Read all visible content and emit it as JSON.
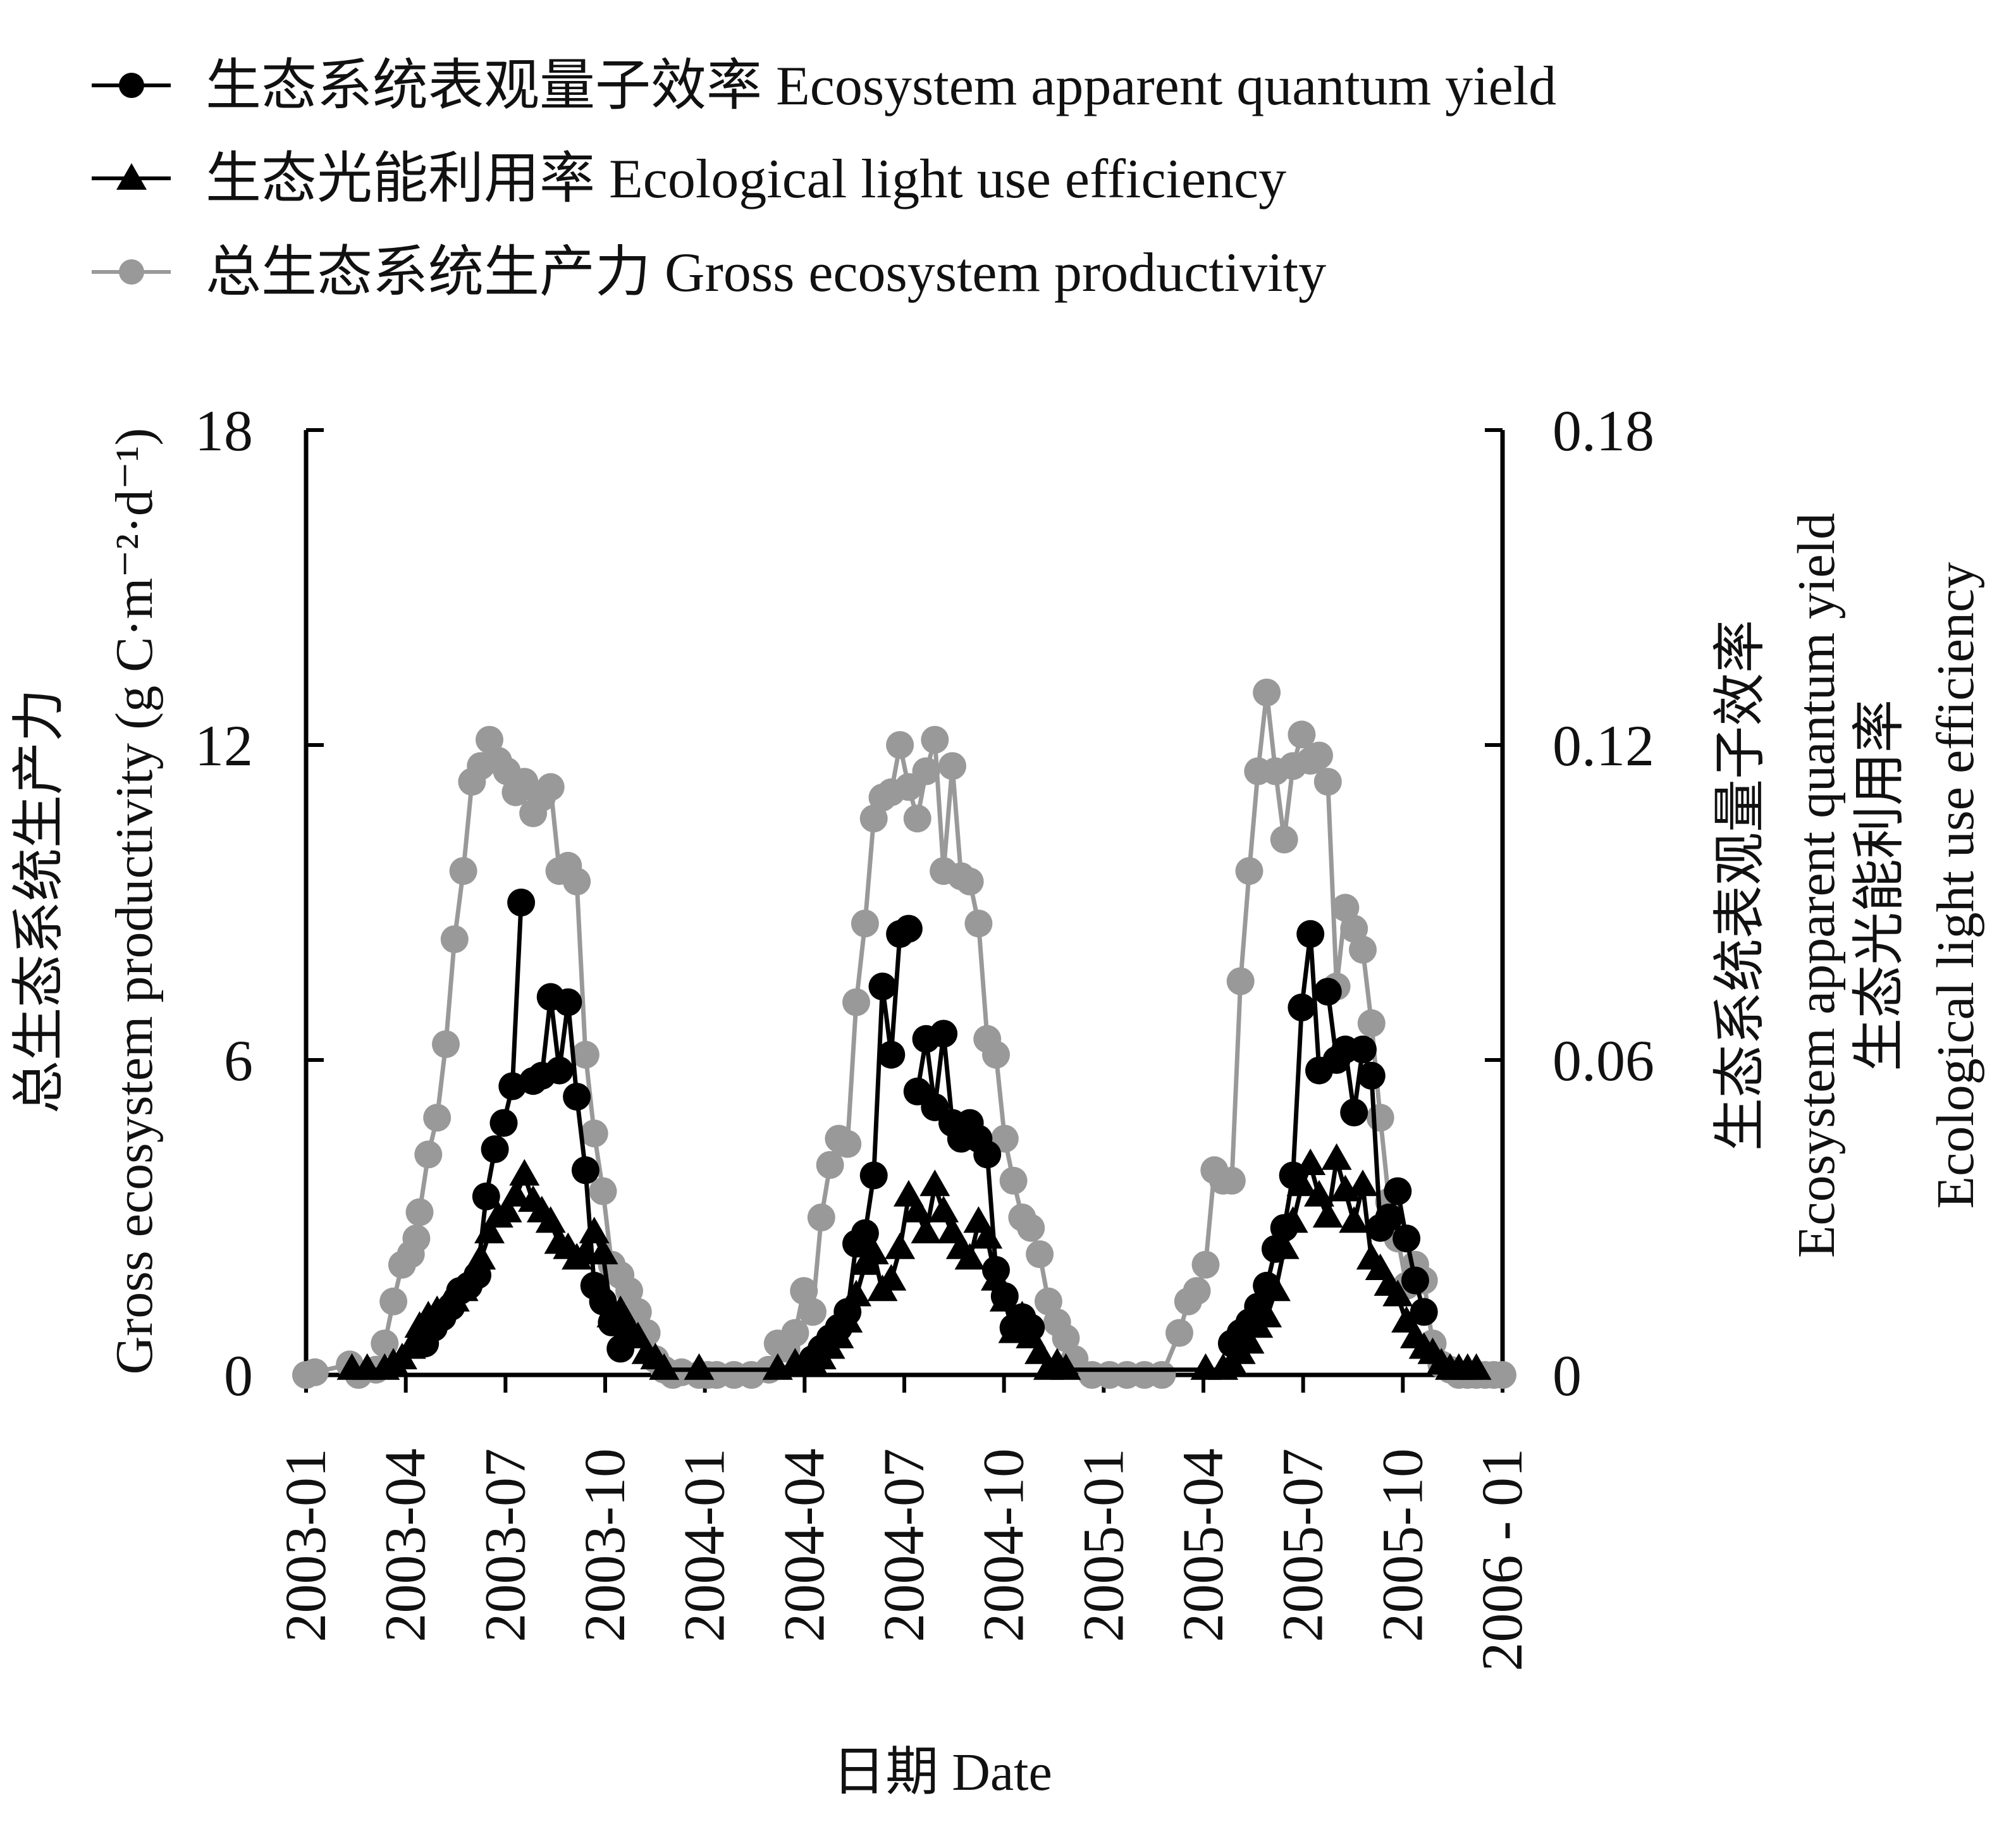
{
  "colors": {
    "quantum_yield": "#000000",
    "light_use": "#000000",
    "gep": "#999999",
    "axis": "#000000"
  },
  "legend": {
    "items": [
      {
        "key": "quantum_yield",
        "label": "生态系统表观量子效率 Ecosystem apparent quantum yield",
        "marker": "circle"
      },
      {
        "key": "light_use",
        "label": "生态光能利用率 Ecological light use efficiency",
        "marker": "triangle"
      },
      {
        "key": "gep",
        "label": "总生态系统生产力 Gross ecosystem productivity",
        "marker": "circle"
      }
    ]
  },
  "chart_data": {
    "type": "line",
    "xlabel": "日期 Date",
    "ylabel_left": [
      "总生态系统生产力",
      "Gross ecosystem productivity (g C·m⁻²·d⁻¹)"
    ],
    "ylabel_right": [
      "生态系统表观量子效率",
      "Ecosystem apparent quantum yield",
      "生态光能利用率",
      "Ecological light use efficiency"
    ],
    "x_ticks": [
      "2003-01",
      "2003-04",
      "2003-07",
      "2003-10",
      "2004-01",
      "2004-04",
      "2004-07",
      "2004-10",
      "2005-01",
      "2005-04",
      "2005-07",
      "2005-10",
      "2006 - 01"
    ],
    "xlim": [
      "2003-01-01",
      "2006-01-01"
    ],
    "ylim_left": [
      0,
      18
    ],
    "ylim_right": [
      0,
      0.18
    ],
    "y_ticks_left": [
      "0",
      "6",
      "12",
      "18"
    ],
    "y_ticks_right": [
      "0",
      "0.06",
      "0.12",
      "0.18"
    ],
    "grid": false,
    "legend_position": "top",
    "series": [
      {
        "name": "总生态系统生产力 Gross ecosystem productivity",
        "key": "gep",
        "axis": "left",
        "marker": "circle",
        "x": [
          "2003-01-01",
          "2003-01-09",
          "2003-02-10",
          "2003-02-18",
          "2003-03-06",
          "2003-03-14",
          "2003-03-22",
          "2003-03-30",
          "2003-04-07",
          "2003-04-12",
          "2003-04-15",
          "2003-04-23",
          "2003-05-01",
          "2003-05-09",
          "2003-05-17",
          "2003-05-25",
          "2003-06-02",
          "2003-06-10",
          "2003-06-18",
          "2003-06-26",
          "2003-07-04",
          "2003-07-12",
          "2003-07-20",
          "2003-07-28",
          "2003-08-05",
          "2003-08-13",
          "2003-08-21",
          "2003-08-29",
          "2003-09-06",
          "2003-09-14",
          "2003-09-22",
          "2003-09-30",
          "2003-10-08",
          "2003-10-16",
          "2003-10-24",
          "2003-11-01",
          "2003-11-09",
          "2003-11-17",
          "2003-11-25",
          "2003-12-03",
          "2003-12-11",
          "2003-12-27",
          "2004-01-04",
          "2004-01-12",
          "2004-01-28",
          "2004-02-13",
          "2004-02-29",
          "2004-03-08",
          "2004-03-16",
          "2004-03-24",
          "2004-04-01",
          "2004-04-09",
          "2004-04-17",
          "2004-04-25",
          "2004-05-03",
          "2004-05-11",
          "2004-05-19",
          "2004-05-27",
          "2004-06-04",
          "2004-06-12",
          "2004-06-20",
          "2004-06-28",
          "2004-07-06",
          "2004-07-14",
          "2004-07-22",
          "2004-07-30",
          "2004-08-07",
          "2004-08-15",
          "2004-08-23",
          "2004-08-31",
          "2004-09-08",
          "2004-09-16",
          "2004-09-24",
          "2004-10-02",
          "2004-10-10",
          "2004-10-18",
          "2004-10-26",
          "2004-11-03",
          "2004-11-11",
          "2004-11-19",
          "2004-11-27",
          "2004-12-05",
          "2004-12-21",
          "2005-01-06",
          "2005-01-22",
          "2005-02-07",
          "2005-02-23",
          "2005-03-11",
          "2005-03-19",
          "2005-03-27",
          "2005-04-04",
          "2005-04-12",
          "2005-04-20",
          "2005-04-28",
          "2005-05-06",
          "2005-05-14",
          "2005-05-22",
          "2005-05-30",
          "2005-06-07",
          "2005-06-15",
          "2005-06-23",
          "2005-07-01",
          "2005-07-09",
          "2005-07-17",
          "2005-07-25",
          "2005-08-02",
          "2005-08-10",
          "2005-08-18",
          "2005-08-26",
          "2005-09-03",
          "2005-09-11",
          "2005-09-19",
          "2005-09-27",
          "2005-10-05",
          "2005-10-13",
          "2005-10-21",
          "2005-10-29",
          "2005-11-06",
          "2005-11-14",
          "2005-11-22",
          "2005-11-30",
          "2005-12-08",
          "2005-12-16",
          "2005-12-24",
          "2006-01-01"
        ],
        "values": [
          0.0,
          0.05,
          0.2,
          0.0,
          0.1,
          0.6,
          1.4,
          2.1,
          2.3,
          2.6,
          3.1,
          4.2,
          4.9,
          6.3,
          8.3,
          9.6,
          11.3,
          11.6,
          12.1,
          11.7,
          11.5,
          11.1,
          11.3,
          10.7,
          11.0,
          11.2,
          9.6,
          9.7,
          9.4,
          6.1,
          4.6,
          3.5,
          2.1,
          1.9,
          1.6,
          1.2,
          0.8,
          0.3,
          0.1,
          0.0,
          0.05,
          0.0,
          0.0,
          0.0,
          0.0,
          0.0,
          0.1,
          0.6,
          0.5,
          0.8,
          1.6,
          1.2,
          3.0,
          4.0,
          4.5,
          4.4,
          7.1,
          8.6,
          10.6,
          11.0,
          11.1,
          12.0,
          11.2,
          10.6,
          11.5,
          12.1,
          9.6,
          11.6,
          9.5,
          9.4,
          8.6,
          6.4,
          6.1,
          4.5,
          3.7,
          3.0,
          2.8,
          2.3,
          1.4,
          1.0,
          0.7,
          0.3,
          0.0,
          0.0,
          0.0,
          0.0,
          0.0,
          0.8,
          1.4,
          1.6,
          2.1,
          3.9,
          3.7,
          3.7,
          7.5,
          9.6,
          11.5,
          13.0,
          11.5,
          10.2,
          11.6,
          12.2,
          11.7,
          11.8,
          11.3,
          7.4,
          8.9,
          8.5,
          8.1,
          6.7,
          4.9,
          3.3,
          2.6,
          1.7,
          2.1,
          1.8,
          0.6,
          0.2,
          0.1,
          0.0,
          0.0,
          0.0,
          0.0,
          0.0,
          0.0
        ]
      },
      {
        "name": "生态系统表观量子效率 Ecosystem apparent quantum yield",
        "key": "quantum_yield",
        "axis": "right",
        "marker": "circle",
        "segments": [
          {
            "x": [
              "2003-04-20",
              "2003-04-28",
              "2003-05-06",
              "2003-05-14",
              "2003-05-22",
              "2003-05-30",
              "2003-06-07",
              "2003-06-15",
              "2003-06-23",
              "2003-07-01",
              "2003-07-09",
              "2003-07-17"
            ],
            "values": [
              0.006,
              0.009,
              0.011,
              0.013,
              0.016,
              0.017,
              0.019,
              0.034,
              0.043,
              0.048,
              0.055,
              0.09
            ]
          },
          {
            "x": [
              "2003-07-28",
              "2003-08-05",
              "2003-08-13",
              "2003-08-21",
              "2003-08-29",
              "2003-09-06",
              "2003-09-14",
              "2003-09-22",
              "2003-09-30",
              "2003-10-08",
              "2003-10-16"
            ],
            "values": [
              0.056,
              0.057,
              0.072,
              0.058,
              0.071,
              0.053,
              0.039,
              0.017,
              0.014,
              0.01,
              0.005
            ]
          },
          {
            "x": [
              "2004-04-09",
              "2004-04-17",
              "2004-04-25",
              "2004-05-03",
              "2004-05-11",
              "2004-05-19",
              "2004-05-27",
              "2004-06-04",
              "2004-06-12",
              "2004-06-20",
              "2004-06-28",
              "2004-07-06"
            ],
            "values": [
              0.003,
              0.005,
              0.007,
              0.009,
              0.012,
              0.025,
              0.027,
              0.038,
              0.074,
              0.061,
              0.084,
              0.085
            ]
          },
          {
            "x": [
              "2004-07-14",
              "2004-07-22",
              "2004-07-30",
              "2004-08-07",
              "2004-08-15",
              "2004-08-23",
              "2004-08-31",
              "2004-09-08",
              "2004-09-16",
              "2004-09-24",
              "2004-10-02",
              "2004-10-10",
              "2004-10-18",
              "2004-10-26"
            ],
            "values": [
              0.054,
              0.064,
              0.051,
              0.065,
              0.048,
              0.045,
              0.048,
              0.045,
              0.042,
              0.02,
              0.015,
              0.009,
              0.011,
              0.009
            ]
          },
          {
            "x": [
              "2005-04-28",
              "2005-05-06",
              "2005-05-14",
              "2005-05-22",
              "2005-05-30",
              "2005-06-07",
              "2005-06-15",
              "2005-06-23",
              "2005-07-01",
              "2005-07-09",
              "2005-07-17"
            ],
            "values": [
              0.006,
              0.008,
              0.01,
              0.013,
              0.017,
              0.024,
              0.028,
              0.038,
              0.07,
              0.084,
              0.058
            ]
          },
          {
            "x": [
              "2005-07-25",
              "2005-08-02",
              "2005-08-10",
              "2005-08-18",
              "2005-08-26",
              "2005-09-03",
              "2005-09-11",
              "2005-09-19",
              "2005-09-27",
              "2005-10-05",
              "2005-10-13",
              "2005-10-21"
            ],
            "values": [
              0.073,
              0.06,
              0.062,
              0.05,
              0.062,
              0.057,
              0.028,
              0.03,
              0.035,
              0.026,
              0.018,
              0.012
            ]
          }
        ]
      },
      {
        "name": "生态光能利用率 Ecological light use efficiency",
        "key": "light_use",
        "axis": "right",
        "marker": "triangle",
        "x": [
          "2003-02-12",
          "2003-02-26",
          "2003-03-14",
          "2003-03-22",
          "2003-03-30",
          "2003-04-07",
          "2003-04-15",
          "2003-04-23",
          "2003-05-01",
          "2003-05-09",
          "2003-05-17",
          "2003-05-25",
          "2003-06-02",
          "2003-06-10",
          "2003-06-18",
          "2003-06-26",
          "2003-07-04",
          "2003-07-12",
          "2003-07-20",
          "2003-07-28",
          "2003-08-05",
          "2003-08-13",
          "2003-08-21",
          "2003-08-29",
          "2003-09-06",
          "2003-09-14",
          "2003-09-22",
          "2003-09-30",
          "2003-10-08",
          "2003-10-16",
          "2003-10-24",
          "2003-11-01",
          "2003-11-09",
          "2003-11-17",
          "2003-11-25",
          "2003-12-27",
          "2004-03-08",
          "2004-03-24",
          "2004-04-01",
          "2004-04-09",
          "2004-04-17",
          "2004-04-25",
          "2004-05-03",
          "2004-05-11",
          "2004-05-19",
          "2004-05-27",
          "2004-06-04",
          "2004-06-12",
          "2004-06-20",
          "2004-06-28",
          "2004-07-06",
          "2004-07-14",
          "2004-07-22",
          "2004-07-30",
          "2004-08-07",
          "2004-08-15",
          "2004-08-23",
          "2004-08-31",
          "2004-09-08",
          "2004-09-16",
          "2004-09-24",
          "2004-10-02",
          "2004-10-10",
          "2004-10-18",
          "2004-10-26",
          "2004-11-03",
          "2004-11-11",
          "2004-11-19",
          "2004-11-27",
          "2005-04-04",
          "2005-04-20",
          "2005-04-28",
          "2005-05-06",
          "2005-05-14",
          "2005-05-22",
          "2005-05-30",
          "2005-06-07",
          "2005-06-15",
          "2005-06-23",
          "2005-07-01",
          "2005-07-09",
          "2005-07-17",
          "2005-07-25",
          "2005-08-02",
          "2005-08-10",
          "2005-08-18",
          "2005-08-26",
          "2005-09-03",
          "2005-09-11",
          "2005-09-19",
          "2005-09-27",
          "2005-10-05",
          "2005-10-13",
          "2005-10-21",
          "2005-10-29",
          "2005-11-06",
          "2005-11-14",
          "2005-11-22",
          "2005-11-30",
          "2005-12-08"
        ],
        "values": [
          0.001,
          0.001,
          0.001,
          0.002,
          0.003,
          0.005,
          0.009,
          0.011,
          0.012,
          0.013,
          0.014,
          0.016,
          0.019,
          0.022,
          0.027,
          0.03,
          0.031,
          0.034,
          0.038,
          0.033,
          0.031,
          0.029,
          0.025,
          0.024,
          0.022,
          0.023,
          0.027,
          0.023,
          0.011,
          0.012,
          0.009,
          0.007,
          0.004,
          0.003,
          0.001,
          0.001,
          0.001,
          0.002,
          0.002,
          0.002,
          0.003,
          0.005,
          0.007,
          0.01,
          0.015,
          0.021,
          0.023,
          0.016,
          0.018,
          0.024,
          0.034,
          0.031,
          0.027,
          0.036,
          0.031,
          0.027,
          0.024,
          0.022,
          0.029,
          0.026,
          0.018,
          0.014,
          0.008,
          0.011,
          0.007,
          0.004,
          0.001,
          0.002,
          0.001,
          0.001,
          0.001,
          0.002,
          0.004,
          0.006,
          0.009,
          0.011,
          0.016,
          0.024,
          0.029,
          0.036,
          0.04,
          0.034,
          0.03,
          0.041,
          0.035,
          0.029,
          0.036,
          0.022,
          0.02,
          0.017,
          0.015,
          0.01,
          0.007,
          0.005,
          0.004,
          0.002,
          0.001,
          0.001,
          0.001,
          0.001
        ]
      }
    ]
  }
}
